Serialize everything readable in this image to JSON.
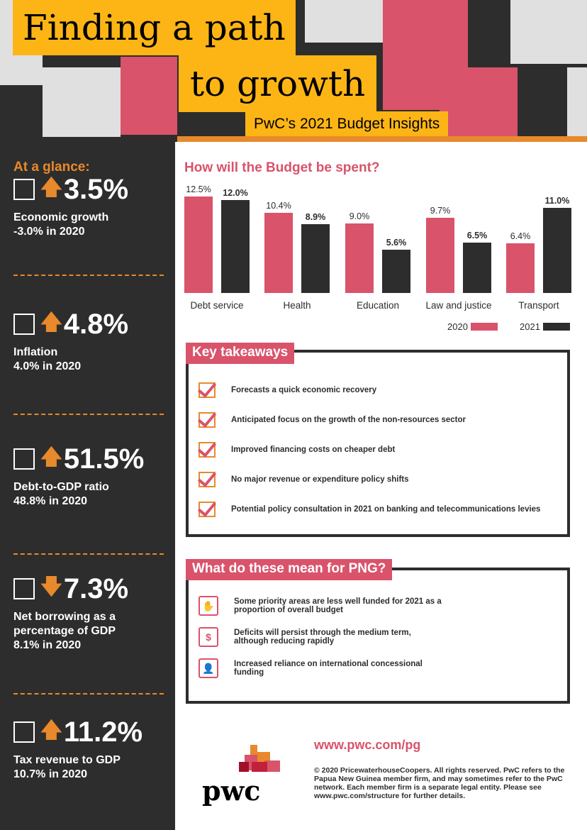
{
  "header": {
    "title_line1": "Finding a path",
    "title_line2": "to growth",
    "subtitle": "PwC’s 2021 Budget Insights"
  },
  "sidebar": {
    "heading": "At a glance:",
    "stats": [
      {
        "icon": "growth-chart-icon",
        "direction": "up",
        "value": "3.5%",
        "label": "Economic growth",
        "prior": "-3.0% in 2020"
      },
      {
        "icon": "inflation-chart-icon",
        "direction": "up",
        "value": "4.8%",
        "label": "Inflation",
        "prior": "4.0% in 2020"
      },
      {
        "icon": "percent-icon",
        "direction": "up",
        "value": "51.5%",
        "label": "Debt-to-GDP ratio",
        "prior": "48.8% in 2020"
      },
      {
        "icon": "up-down-arrows-icon",
        "direction": "down",
        "value": "7.3%",
        "label": "Net borrowing as a percentage of GDP",
        "prior": "8.1% in 2020"
      },
      {
        "icon": "tax-monitor-icon",
        "direction": "up",
        "value": "11.2%",
        "label": "Tax revenue to GDP",
        "prior": "10.7% in 2020"
      }
    ]
  },
  "chart_data": {
    "type": "bar",
    "title": "How will the Budget be spent?",
    "categories": [
      "Debt service",
      "Health",
      "Education",
      "Law and justice",
      "Transport"
    ],
    "series": [
      {
        "name": "2020",
        "color": "#d9536b",
        "values": [
          12.5,
          10.4,
          9.0,
          9.7,
          6.4
        ],
        "labels": [
          "12.5%",
          "10.4%",
          "9.0%",
          "9.7%",
          "6.4%"
        ]
      },
      {
        "name": "2021",
        "color": "#2d2d2d",
        "values": [
          12.0,
          8.9,
          5.6,
          6.5,
          11.0
        ],
        "labels": [
          "12.0%",
          "8.9%",
          "5.6%",
          "6.5%",
          "11.0%"
        ]
      }
    ],
    "ylim": [
      0,
      12.5
    ],
    "legend": "bottom-right",
    "grid": false
  },
  "takeaways": {
    "title": "Key takeaways",
    "items": [
      "Forecasts a quick economic recovery",
      "Anticipated focus on the growth of the non-resources sector",
      "Improved financing costs on cheaper debt",
      "No major revenue or expenditure policy shifts",
      "Potential policy consultation in 2021 on banking and telecommunications levies"
    ]
  },
  "meaning": {
    "title": "What do these mean for PNG?",
    "items": [
      {
        "icon": "budget-hand-icon",
        "text": "Some priority areas are less well funded for 2021 as a proportion of overall budget"
      },
      {
        "icon": "dollar-coin-icon",
        "text": "Deficits will persist through the medium term, although reducing rapidly"
      },
      {
        "icon": "person-chart-icon",
        "text": "Increased reliance on international concessional funding"
      }
    ]
  },
  "footer": {
    "url": "www.pwc.com/pg",
    "copyright": "© 2020 PricewaterhouseCoopers. All rights reserved. PwC refers to the Papua New Guinea member firm, and may sometimes refer to the PwC network. Each member firm is a separate legal entity. Please see www.pwc.com/structure for further details.",
    "logo": "pwc"
  },
  "colors": {
    "pink": "#d9536b",
    "orange": "#e8892b",
    "yellow": "#fdb515",
    "dark": "#2d2d2d"
  }
}
